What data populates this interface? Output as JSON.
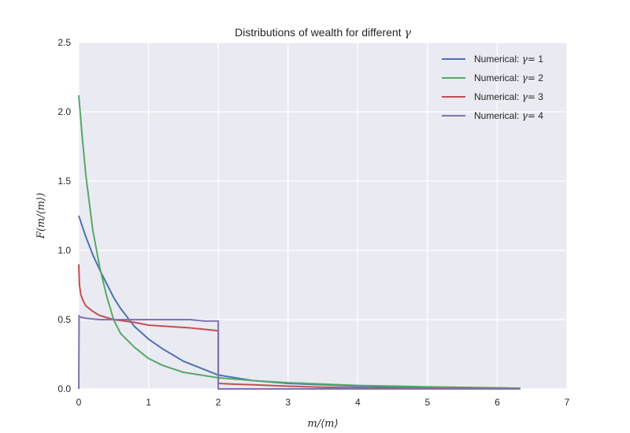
{
  "chart_data": {
    "type": "line",
    "title": "Distributions of wealth for different γ",
    "title_parts": [
      "Distributions of wealth for different ",
      "γ"
    ],
    "xlabel": "m/⟨m⟩",
    "ylabel": "F(m/⟨m⟩)",
    "xlim": [
      0,
      7
    ],
    "ylim": [
      0,
      2.5
    ],
    "xticks": [
      0,
      1,
      2,
      3,
      4,
      5,
      6,
      7
    ],
    "yticks": [
      0.0,
      0.5,
      1.0,
      1.5,
      2.0,
      2.5
    ],
    "xtick_labels": [
      "0",
      "1",
      "2",
      "3",
      "4",
      "5",
      "6",
      "7"
    ],
    "ytick_labels": [
      "0.0",
      "0.5",
      "1.0",
      "1.5",
      "2.0",
      "2.5"
    ],
    "grid": true,
    "legend_position": "top-right",
    "background": "#eaeaf2",
    "series": [
      {
        "name": "Numerical: γ= 1",
        "legend_parts": [
          "Numerical: ",
          "γ=",
          " 1"
        ],
        "color": "#4c72b0",
        "x": [
          0.0,
          0.02,
          0.1,
          0.2,
          0.3,
          0.4,
          0.5,
          0.6,
          0.8,
          1.0,
          1.2,
          1.5,
          2.0,
          2.5,
          3.0,
          3.5,
          4.0,
          5.0,
          6.0,
          6.33
        ],
        "y": [
          1.25,
          1.22,
          1.1,
          0.97,
          0.86,
          0.76,
          0.66,
          0.58,
          0.45,
          0.36,
          0.29,
          0.2,
          0.1,
          0.06,
          0.04,
          0.03,
          0.02,
          0.01,
          0.005,
          0.003
        ]
      },
      {
        "name": "Numerical: γ= 2",
        "legend_parts": [
          "Numerical: ",
          "γ=",
          " 2"
        ],
        "color": "#55a868",
        "x": [
          0.0,
          0.02,
          0.05,
          0.1,
          0.15,
          0.2,
          0.3,
          0.4,
          0.5,
          0.6,
          0.8,
          1.0,
          1.2,
          1.5,
          2.0,
          2.5,
          3.0,
          3.5,
          4.0,
          5.0,
          6.0,
          6.33
        ],
        "y": [
          2.12,
          2.0,
          1.82,
          1.55,
          1.35,
          1.15,
          0.88,
          0.67,
          0.5,
          0.4,
          0.3,
          0.22,
          0.17,
          0.12,
          0.08,
          0.06,
          0.045,
          0.035,
          0.025,
          0.015,
          0.008,
          0.005
        ]
      },
      {
        "name": "Numerical: γ= 3",
        "legend_parts": [
          "Numerical: ",
          "γ=",
          " 3"
        ],
        "color": "#c44e52",
        "x": [
          0.0,
          0.01,
          0.03,
          0.06,
          0.1,
          0.2,
          0.3,
          0.5,
          0.8,
          1.0,
          1.3,
          1.6,
          2.0,
          2.0,
          2.2,
          2.5,
          3.0,
          3.5,
          4.0,
          5.0,
          6.0,
          6.33
        ],
        "y": [
          0.9,
          0.75,
          0.68,
          0.64,
          0.6,
          0.56,
          0.53,
          0.5,
          0.48,
          0.46,
          0.45,
          0.44,
          0.42,
          0.04,
          0.035,
          0.03,
          0.02,
          0.012,
          0.008,
          0.004,
          0.002,
          0.001
        ]
      },
      {
        "name": "Numerical: γ= 4",
        "legend_parts": [
          "Numerical: ",
          "γ=",
          " 4"
        ],
        "color": "#8172b2",
        "x": [
          0.0,
          0.005,
          0.01,
          0.1,
          0.3,
          0.5,
          0.8,
          1.0,
          1.3,
          1.6,
          1.8,
          2.0,
          2.0,
          2.5,
          3.0,
          4.0,
          5.0,
          6.0,
          6.33
        ],
        "y": [
          0.0,
          0.53,
          0.52,
          0.51,
          0.5,
          0.5,
          0.5,
          0.5,
          0.5,
          0.5,
          0.49,
          0.49,
          0.0,
          0.0,
          0.0,
          0.0,
          0.0,
          0.0,
          0.0
        ]
      }
    ]
  }
}
